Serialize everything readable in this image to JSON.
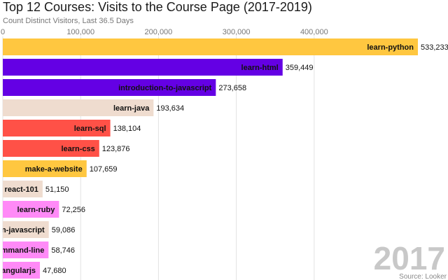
{
  "chart_data": {
    "type": "bar",
    "orientation": "horizontal",
    "title": "Top 12 Courses: Visits to the Course Page (2017-2019)",
    "subtitle": "Count Distinct Visitors, Last 36.5 Days",
    "xlim": [
      0,
      533233
    ],
    "xticks": [
      0,
      100000,
      200000,
      300000,
      400000
    ],
    "xtick_labels": [
      "0",
      "100,000",
      "200,000",
      "300,000",
      "400,000"
    ],
    "grid": true,
    "categories": [
      "learn-python",
      "learn-html",
      "introduction-to-javascript",
      "learn-java",
      "learn-sql",
      "learn-css",
      "make-a-website",
      "react-101",
      "learn-ruby",
      "learn-javascript",
      "learn-the-command-line",
      "learn-angularjs"
    ],
    "values": [
      533233,
      359449,
      273658,
      193634,
      138104,
      123876,
      107659,
      51150,
      72256,
      59086,
      58746,
      47680
    ],
    "value_labels": [
      "533,233",
      "359,449",
      "273,658",
      "193,634",
      "138,104",
      "123,876",
      "107,659",
      "51,150",
      "72,256",
      "59,086",
      "58,746",
      "47,680"
    ],
    "colors": [
      "#ffc740",
      "#6400e4",
      "#6400e4",
      "#efdccf",
      "#ff5147",
      "#ff5147",
      "#ffc740",
      "#efdccf",
      "#ff8af7",
      "#efdccf",
      "#ff8af7",
      "#ff8af7"
    ],
    "year_label": "2017",
    "source": "Source: Looker"
  }
}
